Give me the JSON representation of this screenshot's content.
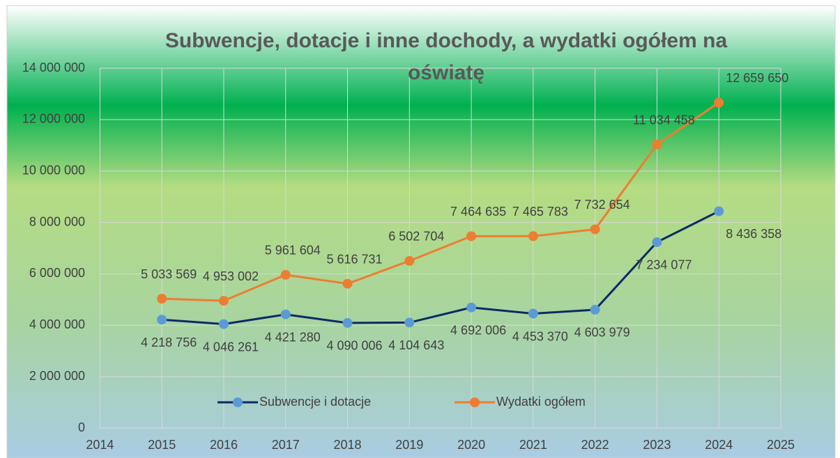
{
  "chart_data": {
    "type": "line",
    "title": "Subwencje, dotacje i inne dochody, a wydatki ogółem na oświatę",
    "x": [
      2015,
      2016,
      2017,
      2018,
      2019,
      2020,
      2021,
      2022,
      2023,
      2024
    ],
    "xlim": [
      2014,
      2025
    ],
    "xticks": [
      2014,
      2015,
      2016,
      2017,
      2018,
      2019,
      2020,
      2021,
      2022,
      2023,
      2024,
      2025
    ],
    "ylim": [
      0,
      14000000
    ],
    "yticks": [
      0,
      {
        "value": 2000000,
        "label": "2 000 000"
      },
      {
        "value": 4000000,
        "label": "4 000 000"
      },
      {
        "value": 6000000,
        "label": "6 000 000"
      },
      {
        "value": 8000000,
        "label": "8 000 000"
      },
      {
        "value": 10000000,
        "label": "10 000 000"
      },
      {
        "value": 12000000,
        "label": "12 000 000"
      },
      {
        "value": 14000000,
        "label": "14 000 000"
      }
    ],
    "grid": true,
    "legend": "bottom",
    "series": [
      {
        "name": "Subwencje i dotacje",
        "color": "#0b2a66",
        "marker_color": "#5b9bd5",
        "values": [
          4218756,
          4046261,
          4421280,
          4090006,
          4104643,
          4692006,
          4453370,
          4603979,
          7234077,
          8436358
        ],
        "value_labels": [
          "4 218 756",
          "4 046 261",
          "4 421 280",
          "4 090 006",
          "4 104 643",
          "4 692 006",
          "4 453 370",
          "4 603 979",
          "7 234 077",
          "8 436 358"
        ]
      },
      {
        "name": "Wydatki ogółem",
        "color": "#ed7d31",
        "marker_color": "#ed7d31",
        "values": [
          5033569,
          4953002,
          5961604,
          5616731,
          6502704,
          7464635,
          7465783,
          7732654,
          11034458,
          12659650
        ],
        "value_labels": [
          "5 033 569",
          "4 953 002",
          "5 961 604",
          "5 616 731",
          "6 502 704",
          "7 464 635",
          "7 465 783",
          "7 732 654",
          "11 034 458",
          "12 659 650"
        ]
      }
    ]
  }
}
